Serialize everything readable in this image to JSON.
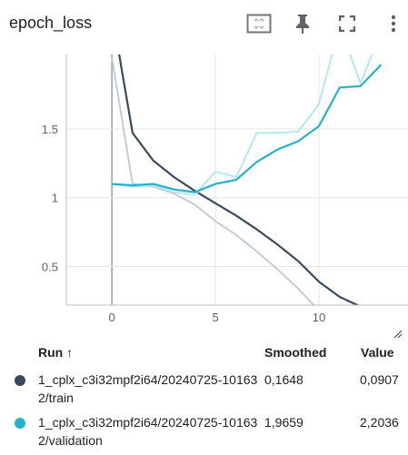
{
  "card": {
    "title": "epoch_loss",
    "tools": [
      "fit-domain-icon",
      "pin-icon",
      "fullscreen-icon",
      "more-vert-icon"
    ]
  },
  "chart_data": {
    "type": "line",
    "title": "epoch_loss",
    "xlim": [
      -2.2,
      14.3
    ],
    "ylim": [
      0.22,
      2.04
    ],
    "x_ticks": [
      0,
      5,
      10
    ],
    "y_ticks": [
      0.5,
      1,
      1.5
    ],
    "grid": true,
    "series": [
      {
        "name": "1_cplx_c3i32mpf2i64/20240725-101632/train",
        "kind": "raw",
        "color": "#c5cbd4",
        "x": [
          0,
          1,
          2,
          3,
          4,
          5,
          6,
          7,
          8,
          9,
          10
        ],
        "y": [
          2.02,
          1.1,
          1.08,
          1.03,
          0.95,
          0.83,
          0.73,
          0.61,
          0.48,
          0.34,
          0.18
        ]
      },
      {
        "name": "1_cplx_c3i32mpf2i64/20240725-101632/train",
        "kind": "smoothed",
        "color": "#3a4a5e",
        "x": [
          0,
          1,
          2,
          3,
          4,
          5,
          6,
          7,
          8,
          9,
          10,
          11,
          12,
          13
        ],
        "y": [
          2.35,
          1.47,
          1.27,
          1.15,
          1.05,
          0.96,
          0.87,
          0.77,
          0.66,
          0.54,
          0.39,
          0.28,
          0.21,
          0.1648
        ]
      },
      {
        "name": "1_cplx_c3i32mpf2i64/20240725-101632/validation",
        "kind": "raw",
        "color": "#b3e8f0",
        "x": [
          0,
          1,
          2,
          3,
          4,
          5,
          6,
          7,
          8,
          9,
          10,
          11,
          12,
          13
        ],
        "y": [
          1.1,
          1.08,
          1.09,
          1.04,
          1.02,
          1.19,
          1.15,
          1.47,
          1.47,
          1.48,
          1.68,
          2.25,
          1.83,
          2.2036
        ]
      },
      {
        "name": "1_cplx_c3i32mpf2i64/20240725-101632/validation",
        "kind": "smoothed",
        "color": "#26b3c8",
        "x": [
          0,
          1,
          2,
          3,
          4,
          5,
          6,
          7,
          8,
          9,
          10,
          11,
          12,
          13
        ],
        "y": [
          1.1,
          1.09,
          1.1,
          1.06,
          1.04,
          1.1,
          1.13,
          1.26,
          1.35,
          1.41,
          1.52,
          1.8,
          1.81,
          1.9659
        ]
      }
    ]
  },
  "table": {
    "headers": {
      "run": "Run ↑",
      "smoothed": "Smoothed",
      "value": "Value"
    },
    "rows": [
      {
        "run": "1_cplx_c3i32mpf2i64/20240725-101632/train",
        "smoothed": "0,1648",
        "value": "0,0907",
        "color": "#3a4a5e"
      },
      {
        "run": "1_cplx_c3i32mpf2i64/20240725-101632/validation",
        "smoothed": "1,9659",
        "value": "2,2036",
        "color": "#26b3c8"
      }
    ]
  }
}
